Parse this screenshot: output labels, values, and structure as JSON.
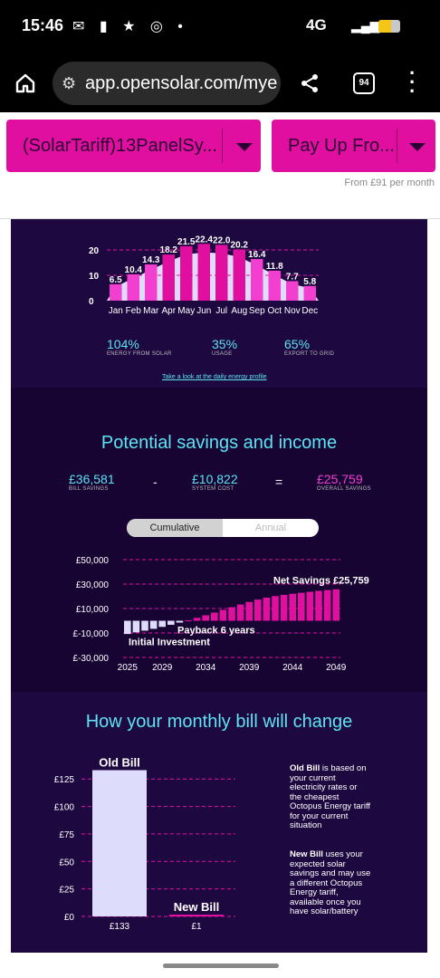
{
  "status_bar": {
    "time": "15:46",
    "network": "4G"
  },
  "browser": {
    "url": "app.opensolar.com/mye",
    "tab_count": "94"
  },
  "selectors": {
    "system": "(SolarTariff)13PanelSy...",
    "payment": "Pay Up Fro...",
    "payment_note": "From £91 per month"
  },
  "energy": {
    "chart_data": {
      "type": "bar",
      "categories": [
        "Jan",
        "Feb",
        "Mar",
        "Apr",
        "May",
        "Jun",
        "Jul",
        "Aug",
        "Sep",
        "Oct",
        "Nov",
        "Dec"
      ],
      "values": [
        6.5,
        10.4,
        14.3,
        18.2,
        21.5,
        22.4,
        22.0,
        20.2,
        16.4,
        11.8,
        7.7,
        5.8
      ],
      "value_labels": [
        "6.5",
        "10.4",
        "14.3",
        "18.2",
        "21.5",
        "22.4",
        "22.0",
        "20.2",
        "16.4",
        "11.8",
        "7.7",
        "5.8"
      ],
      "y_ticks": [
        "20",
        "10",
        "0"
      ],
      "ylim": [
        0,
        25
      ]
    },
    "stats": [
      {
        "value": "104%",
        "label": "ENERGY FROM SOLAR"
      },
      {
        "value": "35%",
        "label": "USAGE"
      },
      {
        "value": "65%",
        "label": "EXPORT TO GRID"
      }
    ],
    "link": "Take a look at the daily energy profile"
  },
  "savings": {
    "title": "Potential savings and income",
    "bill_savings": {
      "value": "£36,581",
      "label": "BILL SAVINGS"
    },
    "minus": "-",
    "system_cost": {
      "value": "£10,822",
      "label": "SYSTEM COST"
    },
    "equals": "=",
    "overall": {
      "value": "£25,759",
      "label": "OVERALL SAVINGS"
    },
    "toggle": {
      "cumulative": "Cumulative",
      "annual": "Annual"
    },
    "chart_data": {
      "type": "bar",
      "years": [
        2025,
        2026,
        2027,
        2028,
        2029,
        2030,
        2031,
        2032,
        2033,
        2034,
        2035,
        2036,
        2037,
        2038,
        2039,
        2040,
        2041,
        2042,
        2043,
        2044,
        2045,
        2046,
        2047,
        2048,
        2049
      ],
      "values": [
        -10822,
        -9500,
        -8100,
        -6600,
        -5000,
        -3300,
        -1500,
        400,
        2400,
        4500,
        6700,
        8900,
        11100,
        13300,
        15400,
        17300,
        18900,
        20200,
        21200,
        22100,
        22900,
        23700,
        24500,
        25100,
        25759
      ],
      "y_ticks": [
        "£50,000",
        "£30,000",
        "£10,000",
        "£-10,000",
        "£-30,000"
      ],
      "x_ticks": [
        "2025",
        "2029",
        "2034",
        "2039",
        "2044",
        "2049"
      ],
      "ylim": [
        -30000,
        50000
      ],
      "annotations": {
        "net": "Net Savings £25,759",
        "payback": "Payback 6 years",
        "investment": "Initial Investment"
      }
    }
  },
  "bill": {
    "title": "How your monthly bill will change",
    "chart_data": {
      "type": "bar",
      "categories": [
        "Old Bill",
        "New Bill"
      ],
      "values": [
        133,
        1
      ],
      "value_labels": [
        "£133",
        "£1"
      ],
      "y_ticks": [
        "£125",
        "£100",
        "£75",
        "£50",
        "£25",
        "£0"
      ],
      "ylim": [
        0,
        140
      ]
    },
    "note_old_bold": "Old Bill",
    "note_old": " is based on your current electricity rates or the cheapest Octopus Energy tariff for your current situation",
    "note_new_bold": "New Bill",
    "note_new": " uses your expected solar savings and may use a different Octopus Energy tariff, available once you have solar/battery"
  },
  "colors": {
    "accent": "#e10fa0",
    "cyan": "#5de3f3",
    "panel": "#1d0840",
    "bar": "#f23fd0",
    "bar_light": "#dedcfb"
  }
}
